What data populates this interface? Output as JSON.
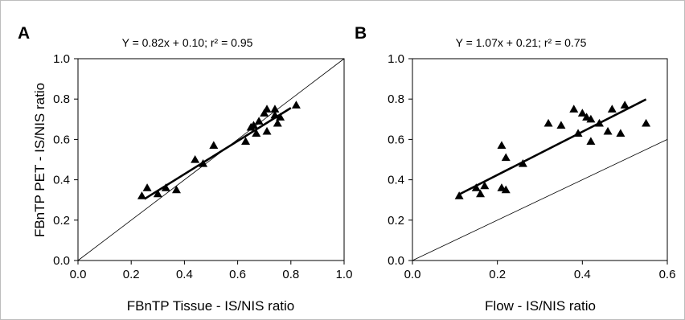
{
  "figure_frame_color": "#bdbdbd",
  "chart_data": [
    {
      "type": "scatter",
      "panel_label": "A",
      "equation": "Y = 0.82x + 0.10; r² = 0.95",
      "title": "",
      "xlabel": "FBnTP Tissue - IS/NIS ratio",
      "ylabel": "FBnTP PET - IS/NIS ratio",
      "xlim": [
        0.0,
        1.0
      ],
      "ylim": [
        0.0,
        1.0
      ],
      "xticks": [
        "0.0",
        "0.2",
        "0.4",
        "0.6",
        "0.8",
        "1.0"
      ],
      "yticks": [
        "0.0",
        "0.2",
        "0.4",
        "0.6",
        "0.8",
        "1.0"
      ],
      "xtick_values": [
        0.0,
        0.2,
        0.4,
        0.6,
        0.8,
        1.0
      ],
      "ytick_values": [
        0.0,
        0.2,
        0.4,
        0.6,
        0.8,
        1.0
      ],
      "grid": false,
      "marker": "triangle",
      "marker_color": "#000000",
      "identity_line": true,
      "regression": {
        "slope": 0.82,
        "intercept": 0.1,
        "x_range": [
          0.25,
          0.8
        ]
      },
      "points": [
        {
          "x": 0.24,
          "y": 0.32
        },
        {
          "x": 0.26,
          "y": 0.36
        },
        {
          "x": 0.3,
          "y": 0.33
        },
        {
          "x": 0.33,
          "y": 0.36
        },
        {
          "x": 0.37,
          "y": 0.35
        },
        {
          "x": 0.44,
          "y": 0.5
        },
        {
          "x": 0.47,
          "y": 0.48
        },
        {
          "x": 0.51,
          "y": 0.57
        },
        {
          "x": 0.63,
          "y": 0.59
        },
        {
          "x": 0.65,
          "y": 0.66
        },
        {
          "x": 0.66,
          "y": 0.67
        },
        {
          "x": 0.67,
          "y": 0.63
        },
        {
          "x": 0.68,
          "y": 0.69
        },
        {
          "x": 0.7,
          "y": 0.73
        },
        {
          "x": 0.71,
          "y": 0.75
        },
        {
          "x": 0.71,
          "y": 0.64
        },
        {
          "x": 0.74,
          "y": 0.72
        },
        {
          "x": 0.74,
          "y": 0.75
        },
        {
          "x": 0.75,
          "y": 0.68
        },
        {
          "x": 0.76,
          "y": 0.71
        },
        {
          "x": 0.82,
          "y": 0.77
        }
      ]
    },
    {
      "type": "scatter",
      "panel_label": "B",
      "equation": "Y = 1.07x + 0.21; r² = 0.75",
      "title": "",
      "xlabel": "Flow - IS/NIS ratio",
      "ylabel": "",
      "xlim": [
        0.0,
        0.6
      ],
      "ylim": [
        0.0,
        1.0
      ],
      "xticks": [
        "0.0",
        "0.2",
        "0.4",
        "0.6"
      ],
      "yticks": [
        "0.0",
        "0.2",
        "0.4",
        "0.6",
        "0.8",
        "1.0"
      ],
      "xtick_values": [
        0.0,
        0.2,
        0.4,
        0.6
      ],
      "ytick_values": [
        0.0,
        0.2,
        0.4,
        0.6,
        0.8,
        1.0
      ],
      "grid": false,
      "marker": "triangle",
      "marker_color": "#000000",
      "identity_line": true,
      "regression": {
        "slope": 1.07,
        "intercept": 0.21,
        "x_range": [
          0.11,
          0.55
        ]
      },
      "points": [
        {
          "x": 0.11,
          "y": 0.32
        },
        {
          "x": 0.15,
          "y": 0.36
        },
        {
          "x": 0.16,
          "y": 0.33
        },
        {
          "x": 0.17,
          "y": 0.37
        },
        {
          "x": 0.21,
          "y": 0.57
        },
        {
          "x": 0.21,
          "y": 0.36
        },
        {
          "x": 0.22,
          "y": 0.51
        },
        {
          "x": 0.22,
          "y": 0.35
        },
        {
          "x": 0.26,
          "y": 0.48
        },
        {
          "x": 0.32,
          "y": 0.68
        },
        {
          "x": 0.35,
          "y": 0.67
        },
        {
          "x": 0.38,
          "y": 0.75
        },
        {
          "x": 0.39,
          "y": 0.63
        },
        {
          "x": 0.4,
          "y": 0.73
        },
        {
          "x": 0.41,
          "y": 0.71
        },
        {
          "x": 0.42,
          "y": 0.7
        },
        {
          "x": 0.42,
          "y": 0.59
        },
        {
          "x": 0.44,
          "y": 0.68
        },
        {
          "x": 0.46,
          "y": 0.64
        },
        {
          "x": 0.47,
          "y": 0.75
        },
        {
          "x": 0.49,
          "y": 0.63
        },
        {
          "x": 0.5,
          "y": 0.77
        },
        {
          "x": 0.55,
          "y": 0.68
        }
      ]
    }
  ]
}
